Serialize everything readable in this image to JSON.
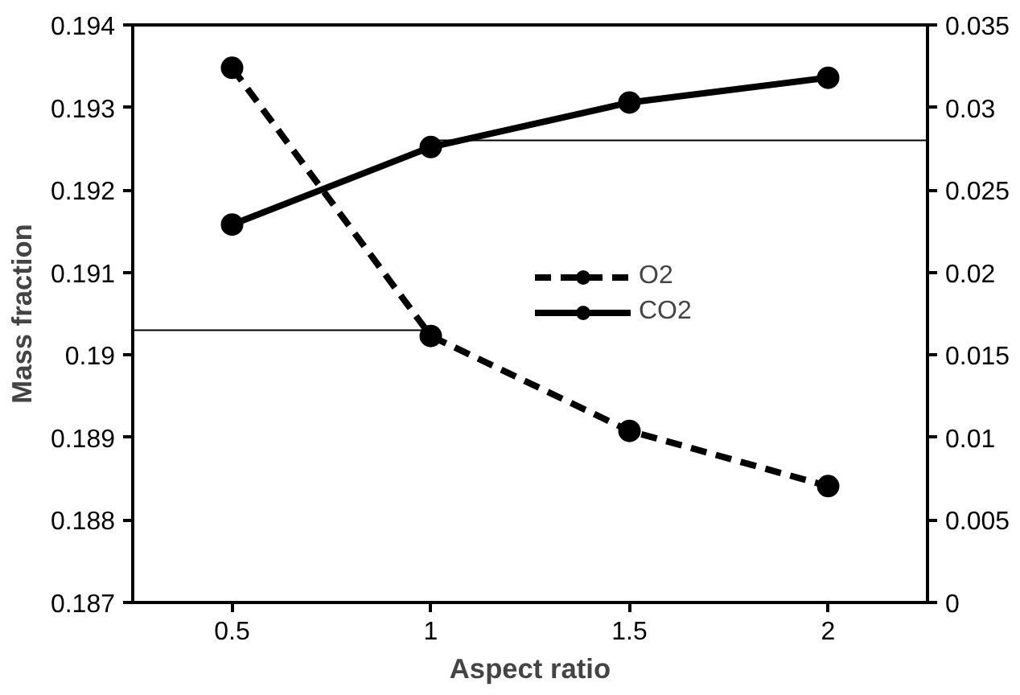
{
  "chart_data": {
    "type": "line",
    "xlabel": "Aspect ratio",
    "ylabel": "Mass fraction",
    "x": [
      0.5,
      1,
      1.5,
      2
    ],
    "series": [
      {
        "name": "O2",
        "color": "#000000",
        "values": [
          0.19348,
          0.19023,
          0.18908,
          0.18841
        ],
        "line_style": "dashed"
      },
      {
        "name": "CO2",
        "color": "#000000",
        "values": [
          0.0229,
          0.0276,
          0.0303,
          0.0318
        ],
        "axis": "y2",
        "line_style": "solid"
      }
    ],
    "xlim": [
      0.25,
      2.25
    ],
    "xticks": [
      0.5,
      1,
      1.5,
      2
    ],
    "ylim": [
      0.187,
      0.194
    ],
    "yticks": [
      0.187,
      0.188,
      0.189,
      0.19,
      0.191,
      0.192,
      0.193,
      0.194
    ],
    "y2lim": [
      0,
      0.035
    ],
    "y2ticks": [
      0,
      0.005,
      0.01,
      0.015,
      0.02,
      0.025,
      0.03,
      0.035
    ],
    "ref_lines": [
      {
        "axis": "y",
        "value": 0.1903,
        "color": "#000000"
      },
      {
        "axis": "y2",
        "value": 0.028,
        "color": "#000000"
      }
    ],
    "marker": "circle",
    "legend": "center",
    "grid": false
  }
}
